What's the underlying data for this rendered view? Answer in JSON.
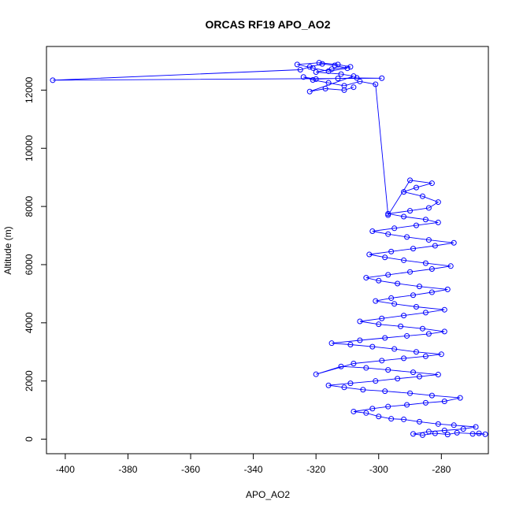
{
  "chart_data": {
    "type": "scatter",
    "title": "ORCAS RF19 APO_AO2",
    "xlabel": "APO_AO2",
    "ylabel": "Altitude (m)",
    "xlim": [
      -406,
      -265
    ],
    "ylim": [
      -500,
      13500
    ],
    "x_ticks": [
      -400,
      -380,
      -360,
      -340,
      -320,
      -300,
      -280
    ],
    "y_ticks": [
      0,
      2000,
      4000,
      6000,
      8000,
      10000,
      12000
    ],
    "x_tick_labels": [
      "-400",
      "-380",
      "-360",
      "-340",
      "-320",
      "-300",
      "-280"
    ],
    "y_tick_labels": [
      "0",
      "2000",
      "4000",
      "6000",
      "8000",
      "10000",
      "12000"
    ],
    "grid": false,
    "legend": "none",
    "color": "#0000ff",
    "series": [
      {
        "values": [
          [
            -270,
            180
          ],
          [
            -268,
            200
          ],
          [
            -266,
            170
          ],
          [
            -275,
            220
          ],
          [
            -278,
            160
          ],
          [
            -282,
            200
          ],
          [
            -286,
            140
          ],
          [
            -289,
            180
          ],
          [
            -284,
            260
          ],
          [
            -279,
            300
          ],
          [
            -273,
            350
          ],
          [
            -269,
            420
          ],
          [
            -276,
            480
          ],
          [
            -281,
            520
          ],
          [
            -287,
            600
          ],
          [
            -292,
            680
          ],
          [
            -296,
            700
          ],
          [
            -300,
            780
          ],
          [
            -304,
            900
          ],
          [
            -308,
            950
          ],
          [
            -302,
            1050
          ],
          [
            -297,
            1120
          ],
          [
            -291,
            1180
          ],
          [
            -285,
            1250
          ],
          [
            -279,
            1300
          ],
          [
            -274,
            1420
          ],
          [
            -283,
            1500
          ],
          [
            -290,
            1580
          ],
          [
            -298,
            1650
          ],
          [
            -305,
            1700
          ],
          [
            -311,
            1780
          ],
          [
            -316,
            1850
          ],
          [
            -309,
            1920
          ],
          [
            -301,
            2000
          ],
          [
            -294,
            2080
          ],
          [
            -287,
            2150
          ],
          [
            -281,
            2220
          ],
          [
            -289,
            2300
          ],
          [
            -297,
            2380
          ],
          [
            -304,
            2450
          ],
          [
            -312,
            2500
          ],
          [
            -320,
            2230
          ],
          [
            -308,
            2600
          ],
          [
            -299,
            2700
          ],
          [
            -292,
            2780
          ],
          [
            -285,
            2850
          ],
          [
            -280,
            2920
          ],
          [
            -288,
            3000
          ],
          [
            -295,
            3100
          ],
          [
            -302,
            3180
          ],
          [
            -309,
            3250
          ],
          [
            -315,
            3300
          ],
          [
            -306,
            3400
          ],
          [
            -298,
            3480
          ],
          [
            -291,
            3550
          ],
          [
            -284,
            3620
          ],
          [
            -279,
            3700
          ],
          [
            -286,
            3800
          ],
          [
            -293,
            3880
          ],
          [
            -300,
            3950
          ],
          [
            -306,
            4050
          ],
          [
            -299,
            4150
          ],
          [
            -292,
            4250
          ],
          [
            -285,
            4350
          ],
          [
            -279,
            4450
          ],
          [
            -288,
            4550
          ],
          [
            -295,
            4650
          ],
          [
            -301,
            4750
          ],
          [
            -296,
            4850
          ],
          [
            -289,
            4950
          ],
          [
            -283,
            5050
          ],
          [
            -278,
            5150
          ],
          [
            -287,
            5250
          ],
          [
            -294,
            5350
          ],
          [
            -300,
            5450
          ],
          [
            -304,
            5550
          ],
          [
            -297,
            5650
          ],
          [
            -290,
            5750
          ],
          [
            -283,
            5850
          ],
          [
            -277,
            5950
          ],
          [
            -285,
            6050
          ],
          [
            -292,
            6150
          ],
          [
            -298,
            6250
          ],
          [
            -303,
            6350
          ],
          [
            -296,
            6450
          ],
          [
            -289,
            6550
          ],
          [
            -282,
            6650
          ],
          [
            -276,
            6750
          ],
          [
            -284,
            6850
          ],
          [
            -291,
            6950
          ],
          [
            -297,
            7050
          ],
          [
            -302,
            7150
          ],
          [
            -295,
            7250
          ],
          [
            -288,
            7350
          ],
          [
            -281,
            7450
          ],
          [
            -285,
            7550
          ],
          [
            -292,
            7650
          ],
          [
            -297,
            7750
          ],
          [
            -290,
            7850
          ],
          [
            -284,
            7950
          ],
          [
            -281,
            8150
          ],
          [
            -286,
            8350
          ],
          [
            -292,
            8500
          ],
          [
            -288,
            8650
          ],
          [
            -283,
            8800
          ],
          [
            -290,
            8900
          ],
          [
            -297,
            7700
          ],
          [
            -301,
            12200
          ],
          [
            -306,
            12300
          ],
          [
            -311,
            12150
          ],
          [
            -316,
            12250
          ],
          [
            -321,
            12350
          ],
          [
            -324,
            12450
          ],
          [
            -320,
            12380
          ],
          [
            -313,
            12400
          ],
          [
            -307,
            12420
          ],
          [
            -299,
            12410
          ],
          [
            -404,
            12340
          ],
          [
            -325,
            12700
          ],
          [
            -322,
            12800
          ],
          [
            -318,
            12900
          ],
          [
            -314,
            12850
          ],
          [
            -310,
            12750
          ],
          [
            -316,
            12650
          ],
          [
            -321,
            12760
          ],
          [
            -326,
            12880
          ],
          [
            -319,
            12940
          ],
          [
            -313,
            12880
          ],
          [
            -309,
            12800
          ],
          [
            -315,
            12720
          ],
          [
            -320,
            12620
          ],
          [
            -312,
            12550
          ],
          [
            -308,
            12480
          ],
          [
            -322,
            11950
          ],
          [
            -317,
            12050
          ],
          [
            -311,
            12000
          ],
          [
            -308,
            12100
          ]
        ]
      }
    ]
  }
}
